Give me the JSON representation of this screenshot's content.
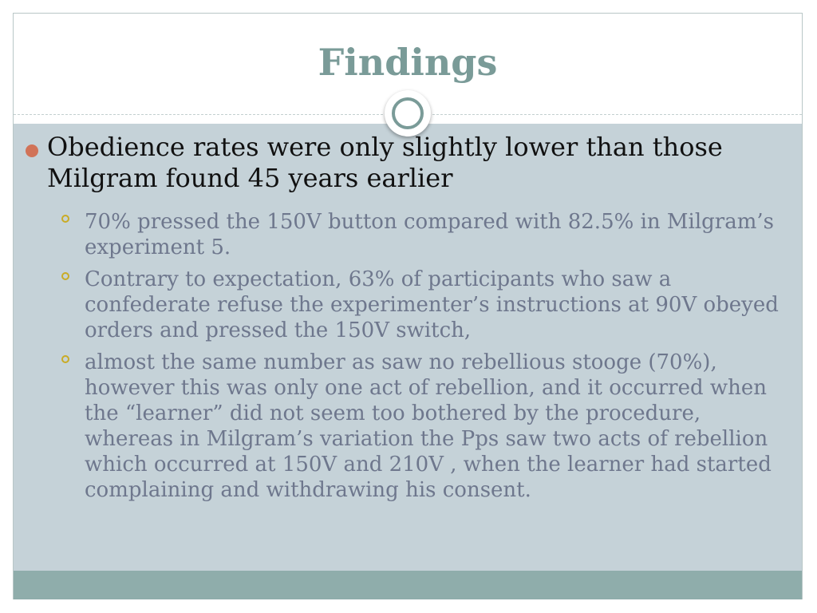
{
  "slide": {
    "title": "Findings",
    "main_bullet": "Obedience rates were only slightly lower than those Milgram found 45 years earlier",
    "sub_bullets": [
      "70% pressed the 150V button compared with 82.5% in Milgram’s experiment 5.",
      "Contrary to expectation, 63% of participants who saw a confederate refuse the experimenter’s instructions at 90V obeyed orders and pressed the 150V switch,",
      "almost the same number as saw no rebellious stooge (70%), however this was only one act of rebellion, and it occurred when the “learner” did not seem too bothered by the procedure, whereas in Milgram’s variation the Pps saw two acts of rebellion which occurred at 150V and 210V , when the learner had started complaining and withdrawing his consent."
    ]
  },
  "colors": {
    "title": "#7a9b98",
    "content_background": "#c5d2d8",
    "footer_bar": "#8fadab",
    "main_bullet_dot": "#d17358",
    "sub_bullet_ring": "#c9ab25",
    "sub_text": "#6e778d"
  },
  "icons": {
    "title_ornament": "ring-ornament-icon",
    "main_bullet": "filled-circle-bullet-icon",
    "sub_bullet": "hollow-circle-bullet-icon"
  }
}
